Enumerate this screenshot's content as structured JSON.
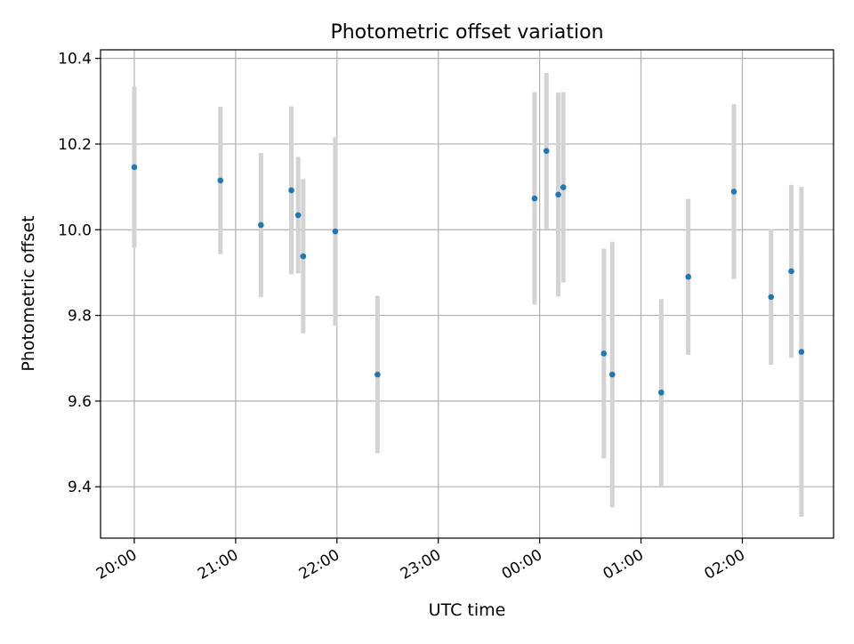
{
  "chart_data": {
    "type": "scatter",
    "title": "Photometric offset variation",
    "xlabel": "UTC time",
    "ylabel": "Photometric offset",
    "x_axis_kind": "time",
    "x_ticks": [
      "20:00",
      "21:00",
      "22:00",
      "23:00",
      "00:00",
      "01:00",
      "02:00"
    ],
    "x_tick_rotation_deg": 30,
    "xlim": [
      "19:40",
      "02:54"
    ],
    "y_ticks": [
      9.4,
      9.6,
      9.8,
      10.0,
      10.2,
      10.4
    ],
    "ylim": [
      9.28,
      10.42
    ],
    "grid": true,
    "legend": "none",
    "colors": {
      "point": "#1f77b4",
      "errorbar": "#d3d3d3",
      "grid": "#b0b0b0"
    },
    "points": [
      {
        "x": "20:00",
        "y": 10.146,
        "err": 0.188
      },
      {
        "x": "20:51",
        "y": 10.115,
        "err": 0.172
      },
      {
        "x": "21:15",
        "y": 10.011,
        "err": 0.168
      },
      {
        "x": "21:33",
        "y": 10.092,
        "err": 0.196
      },
      {
        "x": "21:37",
        "y": 10.034,
        "err": 0.136
      },
      {
        "x": "21:40",
        "y": 9.938,
        "err": 0.18
      },
      {
        "x": "21:59",
        "y": 9.996,
        "err": 0.22
      },
      {
        "x": "22:24",
        "y": 9.662,
        "err": 0.184
      },
      {
        "x": "23:57",
        "y": 10.073,
        "err": 0.248
      },
      {
        "x": "00:04",
        "y": 10.184,
        "err": 0.182
      },
      {
        "x": "00:11",
        "y": 10.082,
        "err": 0.238
      },
      {
        "x": "00:14",
        "y": 10.099,
        "err": 0.222
      },
      {
        "x": "00:38",
        "y": 9.711,
        "err": 0.245
      },
      {
        "x": "00:43",
        "y": 9.662,
        "err": 0.31
      },
      {
        "x": "01:12",
        "y": 9.62,
        "err": 0.218
      },
      {
        "x": "01:28",
        "y": 9.89,
        "err": 0.182
      },
      {
        "x": "01:55",
        "y": 10.089,
        "err": 0.204
      },
      {
        "x": "02:17",
        "y": 9.843,
        "err": 0.158
      },
      {
        "x": "02:29",
        "y": 9.903,
        "err": 0.202
      },
      {
        "x": "02:35",
        "y": 9.715,
        "err": 0.385
      }
    ]
  }
}
